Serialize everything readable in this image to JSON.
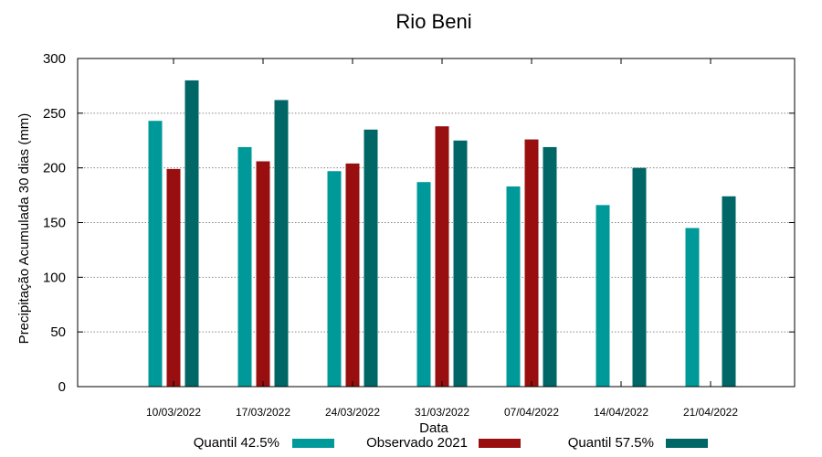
{
  "chart_data": {
    "type": "bar",
    "title": "Rio Beni",
    "xlabel": "Data",
    "ylabel": "Precipitação Acumulada 30 dias (mm)",
    "ylim": [
      0,
      300
    ],
    "yticks": [
      "0",
      "50",
      "100",
      "150",
      "200",
      "250",
      "300"
    ],
    "categories": [
      "10/03/2022",
      "17/03/2022",
      "24/03/2022",
      "31/03/2022",
      "07/04/2022",
      "14/04/2022",
      "21/04/2022"
    ],
    "grid": true,
    "legend_position": "bottom",
    "series": [
      {
        "name": "Quantil 42.5%",
        "color": "#009999",
        "values": [
          243,
          219,
          197,
          187,
          183,
          166,
          145
        ]
      },
      {
        "name": "Observado 2021",
        "color": "#990f0f",
        "values": [
          199,
          206,
          204,
          238,
          226,
          null,
          null
        ]
      },
      {
        "name": "Quantil 57.5%",
        "color": "#006666",
        "values": [
          280,
          262,
          235,
          225,
          219,
          200,
          174
        ]
      }
    ]
  }
}
